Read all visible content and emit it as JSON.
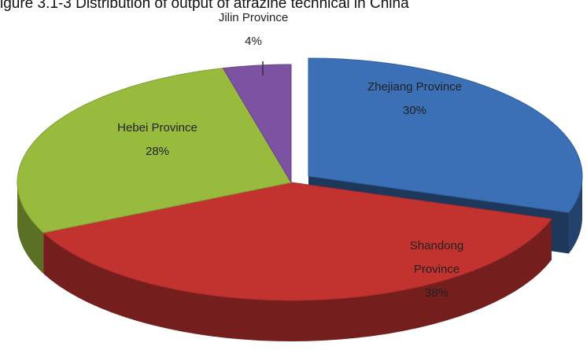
{
  "chart_data": {
    "type": "pie",
    "title": "igure 3.1-3 Distribution of output of atrazine technical in China",
    "categories": [
      "Zhejiang Province",
      "Shandong Province",
      "Hebei Province",
      "Jilin Province"
    ],
    "values": [
      30,
      38,
      28,
      4
    ],
    "value_labels": [
      "30%",
      "38%",
      "28%",
      "4%"
    ],
    "colors": [
      "#3b6fb6",
      "#c23330",
      "#98bb3e",
      "#7d52a3"
    ]
  }
}
